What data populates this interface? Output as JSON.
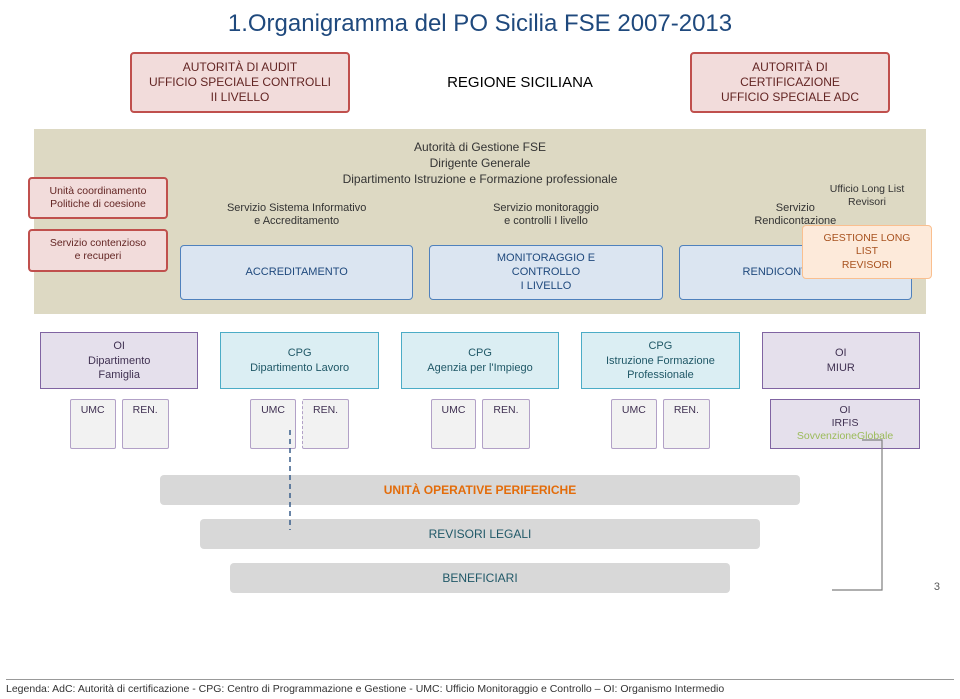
{
  "title": "1.Organigramma del PO Sicilia FSE 2007-2013",
  "top": {
    "audit": "AUTORITÀ DI AUDIT\nUFFICIO SPECIALE CONTROLLI\nII LIVELLO",
    "regione": "REGIONE SICILIANA",
    "cert": "AUTORITÀ DI\nCERTIFICAZIONE\nUFFICIO SPECIALE ADC"
  },
  "tan": {
    "head": "Autorità di Gestione FSE\nDirigente Generale\nDipartimento Istruzione e Formazione professionale",
    "left": {
      "coord": "Unità coordinamento\nPolitiche di coesione",
      "cont": "Servizio contenzioso\ne recuperi"
    },
    "svc_row": {
      "a": "Servizio Sistema Informativo\ne Accreditamento",
      "b": "Servizio monitoraggio\ne controlli I livello",
      "c": "Servizio\nRendicontazione"
    },
    "blue_row": {
      "a": "ACCREDITAMENTO",
      "b": "MONITORAGGIO E\nCONTROLLO\nI LIVELLO",
      "c": "RENDICONTAZIONE"
    },
    "right": {
      "long": "Ufficio Long List\nRevisori",
      "gest": "GESTIONE LONG LIST\nREVISORI"
    }
  },
  "mid": {
    "a": "OI\nDipartimento\nFamiglia",
    "b": "CPG\nDipartimento Lavoro",
    "c": "CPG\nAgenzia per l'Impiego",
    "d": "CPG\nIstruzione Formazione\nProfessionale",
    "e": "OI\nMIUR"
  },
  "umc": {
    "u": "UMC",
    "r": "REN."
  },
  "irfis": {
    "o": "OI",
    "i": "IRFIS",
    "s": "SovvenzioneGlobale"
  },
  "uperif": "UNITÀ OPERATIVE PERIFERICHE",
  "revleg": "REVISORI LEGALI",
  "benef": "BENEFICIARI",
  "pagenum": "3",
  "legend": "Legenda: AdC: Autorità di certificazione - CPG: Centro di Programmazione e Gestione  - UMC: Ufficio Monitoraggio e Controllo – OI: Organismo  Intermedio",
  "colors": {
    "title": "#1f497d",
    "red_bg": "#f2dcdb",
    "red_border": "#c0504d",
    "tan_bg": "#ddd9c3",
    "blue_bg": "#dbe5f1",
    "blue_border": "#4f81bd",
    "orange_bg": "#fdeada",
    "orange_border": "#fabf8f",
    "purple_bg": "#e5e0ec",
    "purple_border": "#8064a2",
    "teal_bg": "#dbeef3",
    "teal_border": "#4bacc6",
    "grey_bg": "#d8d8d8",
    "orange_text": "#e36c0a",
    "teal_text": "#215968",
    "green_text": "#9bbb59",
    "line": "#385d8a",
    "line_grey": "#7f7f7f"
  }
}
